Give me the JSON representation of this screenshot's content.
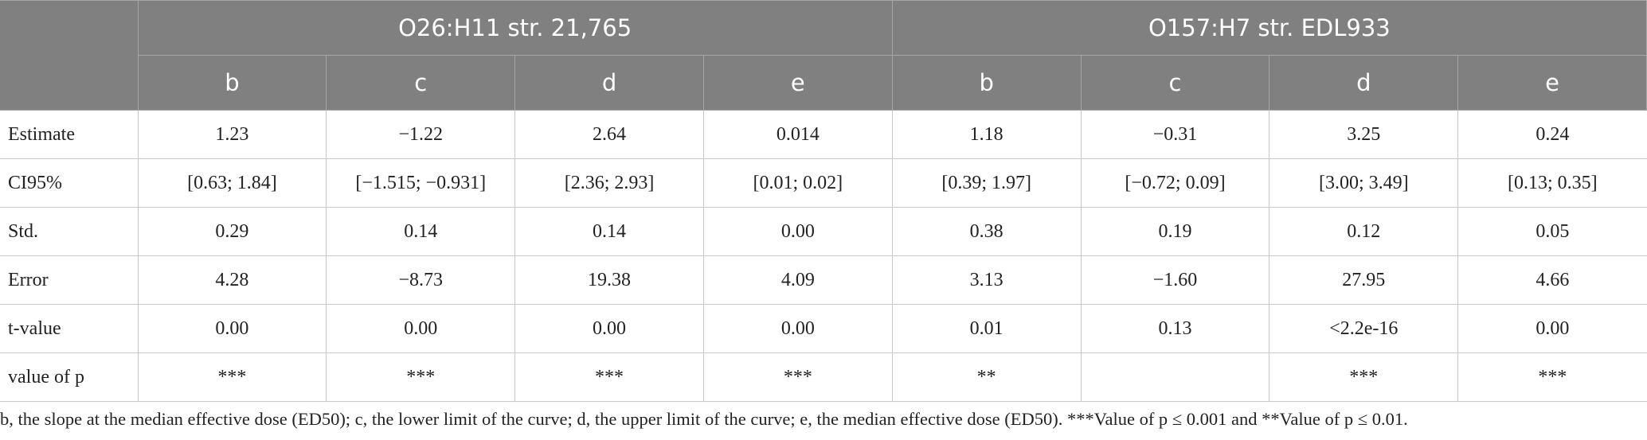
{
  "header": {
    "groups": [
      "O26:H11 str. 21,765",
      "O157:H7 str. EDL933"
    ],
    "columns": [
      "b",
      "c",
      "d",
      "e",
      "b",
      "c",
      "d",
      "e"
    ]
  },
  "table": {
    "rows": [
      [
        "Estimate",
        "1.23",
        "−1.22",
        "2.64",
        "0.014",
        "1.18",
        "−0.31",
        "3.25",
        "0.24"
      ],
      [
        "CI95%",
        "[0.63; 1.84]",
        "[−1.515; −0.931]",
        "[2.36; 2.93]",
        "[0.01; 0.02]",
        "[0.39; 1.97]",
        "[−0.72; 0.09]",
        "[3.00; 3.49]",
        "[0.13; 0.35]"
      ],
      [
        "Std.",
        "0.29",
        "0.14",
        "0.14",
        "0.00",
        "0.38",
        "0.19",
        "0.12",
        "0.05"
      ],
      [
        "Error",
        "4.28",
        "−8.73",
        "19.38",
        "4.09",
        "3.13",
        "−1.60",
        "27.95",
        "4.66"
      ],
      [
        "t-value",
        "0.00",
        "0.00",
        "0.00",
        "0.00",
        "0.01",
        "0.13",
        "<2.2e-16",
        "0.00"
      ],
      [
        "value of p",
        "***",
        "***",
        "***",
        "***",
        "**",
        null,
        "***",
        "***"
      ]
    ]
  },
  "footnote": "b, the slope at the median effective dose (ED50); c, the lower limit of the curve; d, the upper limit of the curve; e, the median effective dose (ED50). ***Value of p ≤ 0.001 and **Value of p ≤ 0.01."
}
